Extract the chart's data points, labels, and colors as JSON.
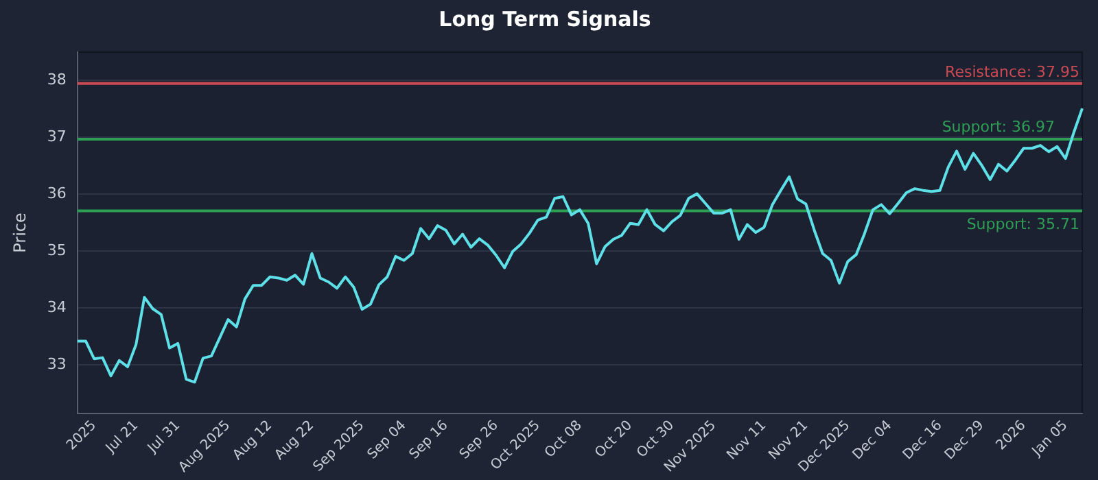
{
  "chart_data": {
    "type": "line",
    "title": "Long Term Signals",
    "ylabel": "Price",
    "categories": [
      null,
      null,
      "2025",
      null,
      null,
      null,
      null,
      "Jul 21",
      null,
      null,
      null,
      null,
      "Jul 31",
      null,
      null,
      null,
      null,
      null,
      "Aug 2025",
      null,
      null,
      null,
      null,
      "Aug 12",
      null,
      null,
      null,
      null,
      "Aug 22",
      null,
      null,
      null,
      null,
      null,
      "Sep 2025",
      null,
      null,
      null,
      null,
      "Sep 04",
      null,
      null,
      null,
      null,
      "Sep 16",
      null,
      null,
      null,
      null,
      null,
      "Sep 26",
      null,
      null,
      null,
      null,
      "Oct 2025",
      null,
      null,
      null,
      null,
      "Oct 08",
      null,
      null,
      null,
      null,
      null,
      "Oct 20",
      null,
      null,
      null,
      null,
      "Oct 30",
      null,
      null,
      null,
      null,
      "Nov 2025",
      null,
      null,
      null,
      null,
      null,
      "Nov 11",
      null,
      null,
      null,
      null,
      "Nov 21",
      null,
      null,
      null,
      null,
      "Dec 2025",
      null,
      null,
      null,
      null,
      "Dec 04",
      null,
      null,
      null,
      null,
      null,
      "Dec 16",
      null,
      null,
      null,
      null,
      "Dec 29",
      null,
      null,
      null,
      null,
      "2026",
      null,
      null,
      null,
      null,
      "Jan 05",
      null,
      null
    ],
    "series": [
      {
        "color": "#5ee0e8",
        "values": [
          33.42,
          33.42,
          33.11,
          33.13,
          32.81,
          33.08,
          32.97,
          33.36,
          34.19,
          33.99,
          33.89,
          33.3,
          33.38,
          32.75,
          32.7,
          33.12,
          33.16,
          33.48,
          33.8,
          33.67,
          34.16,
          34.4,
          34.4,
          34.55,
          34.53,
          34.49,
          34.58,
          34.42,
          34.96,
          34.53,
          34.46,
          34.35,
          34.55,
          34.37,
          33.98,
          34.07,
          34.41,
          34.55,
          34.91,
          34.84,
          34.96,
          35.4,
          35.22,
          35.45,
          35.37,
          35.13,
          35.3,
          35.07,
          35.22,
          35.11,
          34.93,
          34.71,
          35.0,
          35.13,
          35.32,
          35.55,
          35.6,
          35.93,
          35.96,
          35.64,
          35.73,
          35.49,
          34.78,
          35.08,
          35.21,
          35.28,
          35.49,
          35.47,
          35.73,
          35.47,
          35.36,
          35.52,
          35.63,
          35.93,
          36.01,
          35.84,
          35.67,
          35.67,
          35.73,
          35.21,
          35.47,
          35.33,
          35.42,
          35.82,
          36.07,
          36.31,
          35.92,
          35.83,
          35.37,
          34.96,
          34.84,
          34.44,
          34.82,
          34.94,
          35.31,
          35.73,
          35.82,
          35.66,
          35.84,
          36.03,
          36.1,
          36.07,
          36.05,
          36.07,
          36.48,
          36.76,
          36.44,
          36.72,
          36.51,
          36.26,
          36.53,
          36.41,
          36.6,
          36.81,
          36.81,
          36.86,
          36.75,
          36.84,
          36.63,
          37.09,
          37.51
        ]
      }
    ],
    "ylim": [
      32.15,
      38.5
    ],
    "yticks": [
      33,
      34,
      35,
      36,
      37,
      38
    ],
    "grid": "y",
    "legend": false,
    "marker": "none",
    "line_style": "solid",
    "ref_lines": [
      {
        "axis": "y",
        "value": 37.95,
        "label": "Resistance: 37.95",
        "color": "#c94a52"
      },
      {
        "axis": "y",
        "value": 36.97,
        "label": "Support: 36.97",
        "color": "#2e9e55"
      },
      {
        "axis": "y",
        "value": 35.71,
        "label": "Support: 35.71",
        "color": "#2e9e55"
      }
    ]
  }
}
